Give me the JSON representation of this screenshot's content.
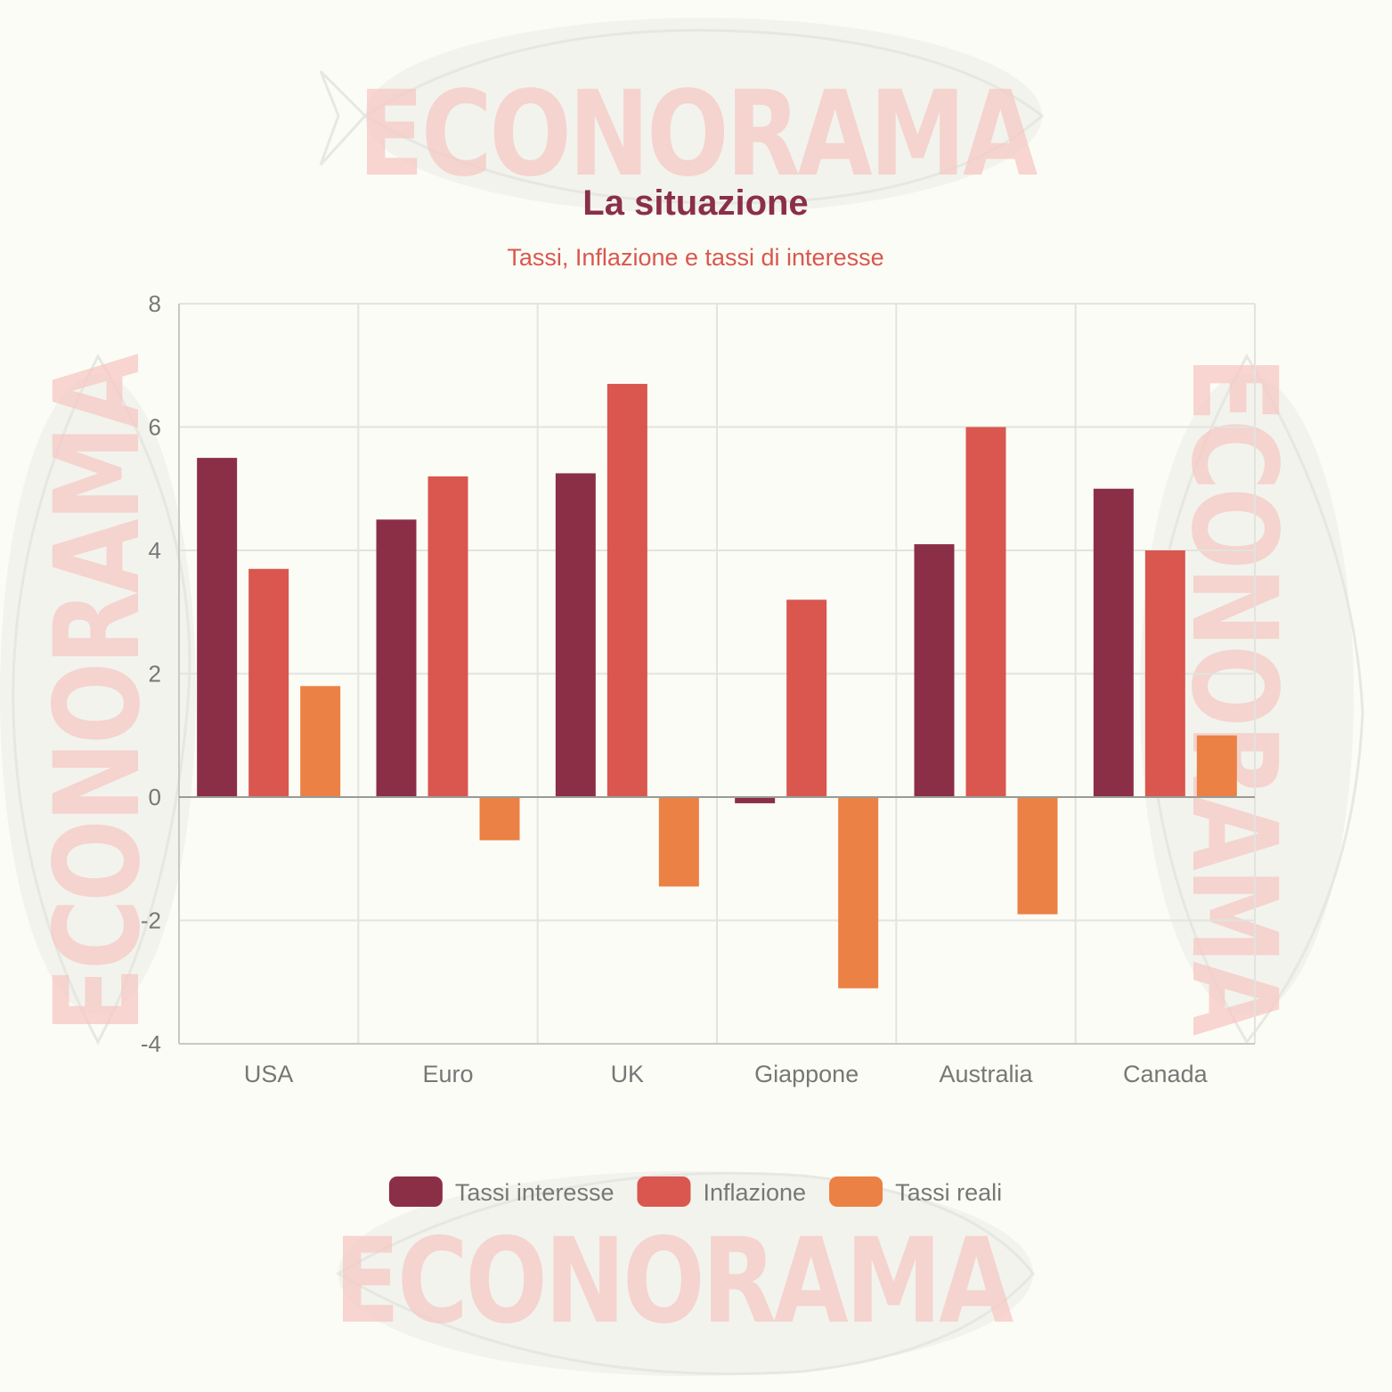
{
  "watermark": {
    "text": "ECONORAMA"
  },
  "chart_data": {
    "type": "bar",
    "title": "La situazione",
    "subtitle": "Tassi, Inflazione e tassi di interesse",
    "xlabel": "",
    "ylabel": "",
    "categories": [
      "USA",
      "Euro",
      "UK",
      "Giappone",
      "Australia",
      "Canada"
    ],
    "series": [
      {
        "name": "Tassi interesse",
        "color": "#8b2f46",
        "values": [
          5.5,
          4.5,
          5.25,
          -0.1,
          4.1,
          5.0
        ]
      },
      {
        "name": "Inflazione",
        "color": "#d9574e",
        "values": [
          3.7,
          5.2,
          6.7,
          3.2,
          6.0,
          4.0
        ]
      },
      {
        "name": "Tassi reali",
        "color": "#eb8144",
        "values": [
          1.8,
          -0.7,
          -1.45,
          -3.1,
          -1.9,
          1.0
        ]
      }
    ],
    "ylim": [
      -4,
      8
    ],
    "yticks": [
      -4,
      -2,
      0,
      2,
      4,
      6,
      8
    ],
    "grid": true,
    "legend_position": "bottom"
  }
}
